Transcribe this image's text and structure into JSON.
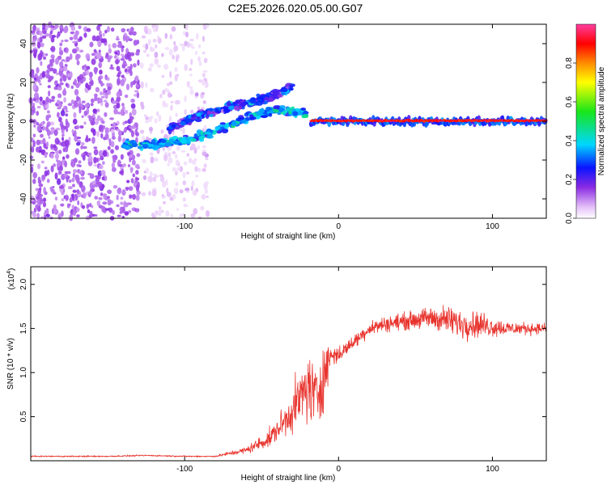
{
  "title": "C2E5.2026.020.05.00.G07",
  "chart_data": [
    {
      "type": "heatmap",
      "xlabel": "Height of straight line (km)",
      "ylabel": "Frequency (Hz)",
      "xlim": [
        -200,
        135
      ],
      "ylim": [
        -50,
        50
      ],
      "xticks": [
        -100,
        0,
        100
      ],
      "xtick_labels": [
        "-100",
        "0",
        "100"
      ],
      "yticks": [
        -40,
        -20,
        0,
        20,
        40
      ],
      "ytick_labels": [
        "-40",
        "-20",
        "0",
        "20",
        "40"
      ],
      "colorbar": {
        "label": "Normalized spectral amplitude",
        "range": [
          0,
          1
        ],
        "ticks": [
          0.0,
          0.2,
          0.4,
          0.6,
          0.8
        ],
        "tick_labels": [
          "0.0",
          "0.2",
          "0.4",
          "0.6",
          "0.8"
        ]
      },
      "features": [
        {
          "name": "noise",
          "x_range": [
            -200,
            -130
          ],
          "y_range": [
            -50,
            50
          ],
          "amplitude": 0.12
        },
        {
          "name": "weak-noise",
          "x_range": [
            -128,
            -85
          ],
          "y_range": [
            -50,
            50
          ],
          "amplitude": 0.04
        },
        {
          "name": "lower-track",
          "points": [
            [
              -140,
              -12
            ],
            [
              -120,
              -12
            ],
            [
              -100,
              -10
            ],
            [
              -80,
              -5
            ],
            [
              -60,
              2
            ],
            [
              -40,
              6
            ],
            [
              -20,
              4
            ]
          ],
          "amplitude": 0.35
        },
        {
          "name": "upper-track",
          "points": [
            [
              -110,
              -4
            ],
            [
              -90,
              3
            ],
            [
              -70,
              8
            ],
            [
              -55,
              10
            ],
            [
              -40,
              14
            ],
            [
              -30,
              18
            ]
          ],
          "amplitude": 0.25
        },
        {
          "name": "carrier",
          "points": [
            [
              -18,
              0
            ],
            [
              135,
              0
            ]
          ],
          "amplitude": 0.95
        }
      ]
    },
    {
      "type": "line",
      "xlabel": "Height of straight line (km)",
      "ylabel": "SNR (10 * v/v)",
      "y_multiplier_label": "(x10",
      "y_multiplier_exp": "4",
      "xlim": [
        -200,
        135
      ],
      "ylim": [
        0,
        2.2
      ],
      "xticks": [
        -100,
        0,
        100
      ],
      "xtick_labels": [
        "-100",
        "0",
        "100"
      ],
      "yticks": [
        0.5,
        1.0,
        1.5,
        2.0
      ],
      "ytick_labels": [
        "0.5",
        "1.0",
        "1.5",
        "2.0"
      ],
      "color": "#e8332d",
      "profile": {
        "x": [
          -200,
          -150,
          -125,
          -100,
          -80,
          -60,
          -45,
          -35,
          -25,
          -20,
          -15,
          -10,
          -5,
          0,
          10,
          20,
          30,
          50,
          60,
          70,
          80,
          90,
          100,
          110,
          120,
          135
        ],
        "y": [
          0.05,
          0.05,
          0.06,
          0.05,
          0.05,
          0.12,
          0.25,
          0.45,
          0.7,
          0.85,
          0.7,
          0.95,
          1.2,
          1.2,
          1.35,
          1.5,
          1.55,
          1.6,
          1.62,
          1.6,
          1.55,
          1.55,
          1.52,
          1.5,
          1.5,
          1.5
        ]
      },
      "noise_amplitude": {
        "x": [
          -200,
          -80,
          -60,
          -40,
          -30,
          -20,
          -12,
          -5,
          0,
          20,
          50,
          75,
          90,
          110,
          135
        ],
        "y": [
          0.01,
          0.01,
          0.06,
          0.18,
          0.35,
          0.6,
          0.6,
          0.25,
          0.12,
          0.12,
          0.15,
          0.25,
          0.22,
          0.12,
          0.08
        ]
      }
    }
  ]
}
